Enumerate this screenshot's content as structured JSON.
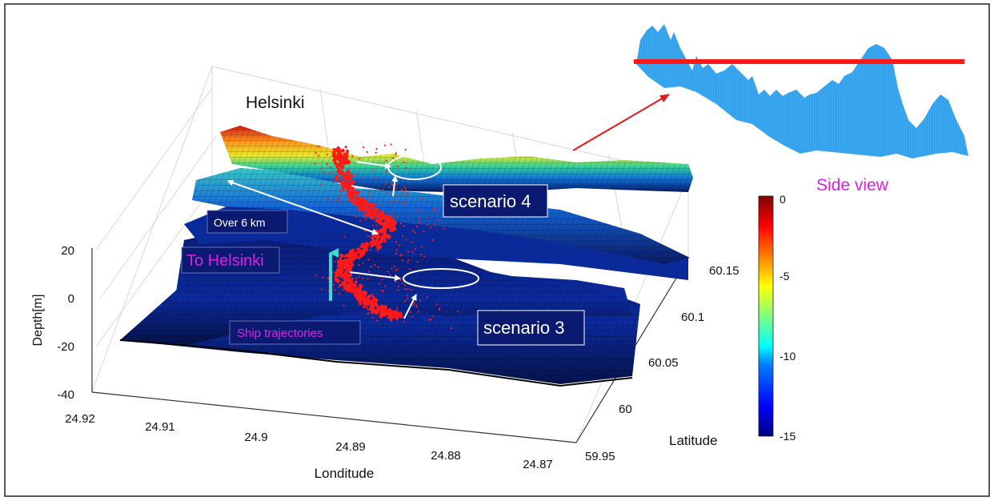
{
  "chart_data": {
    "type": "surface",
    "title": "",
    "zlabel": "Depth[m]",
    "xlabel": "Londitude",
    "ylabel": "Latitude",
    "x_ticks": [
      "24.92",
      "24.91",
      "24.9",
      "24.89",
      "24.88",
      "24.87"
    ],
    "y_ticks": [
      "59.95",
      "60",
      "60.05",
      "60.1",
      "60.15"
    ],
    "z_ticks": [
      "20",
      "0",
      "-20",
      "-40"
    ],
    "zlim": [
      -40,
      20
    ],
    "grid": true,
    "colorbar": {
      "ticks": [
        "0",
        "-5",
        "-10",
        "-15"
      ],
      "range": [
        -15,
        0
      ],
      "colormap": [
        "#00007f",
        "#0000ff",
        "#0080ff",
        "#00ffff",
        "#80ff80",
        "#ffff00",
        "#ff8000",
        "#ff0000",
        "#7f0000"
      ]
    },
    "annotations": {
      "helsinki": "Helsinki",
      "over6km": "Over 6 km",
      "to_helsinki": "To Helsinki",
      "ship_trajectories": "Ship trajectories",
      "scenario4": "scenario 4",
      "scenario3": "scenario 3",
      "side_view": "Side view"
    },
    "colors": {
      "trajectory": "#ff1a1a",
      "to_helsinki_text": "#e020e0",
      "side_view_text": "#e020e0",
      "side_view_surface": "#3aa8f0",
      "up_arrow": "#3fd6d0"
    }
  }
}
